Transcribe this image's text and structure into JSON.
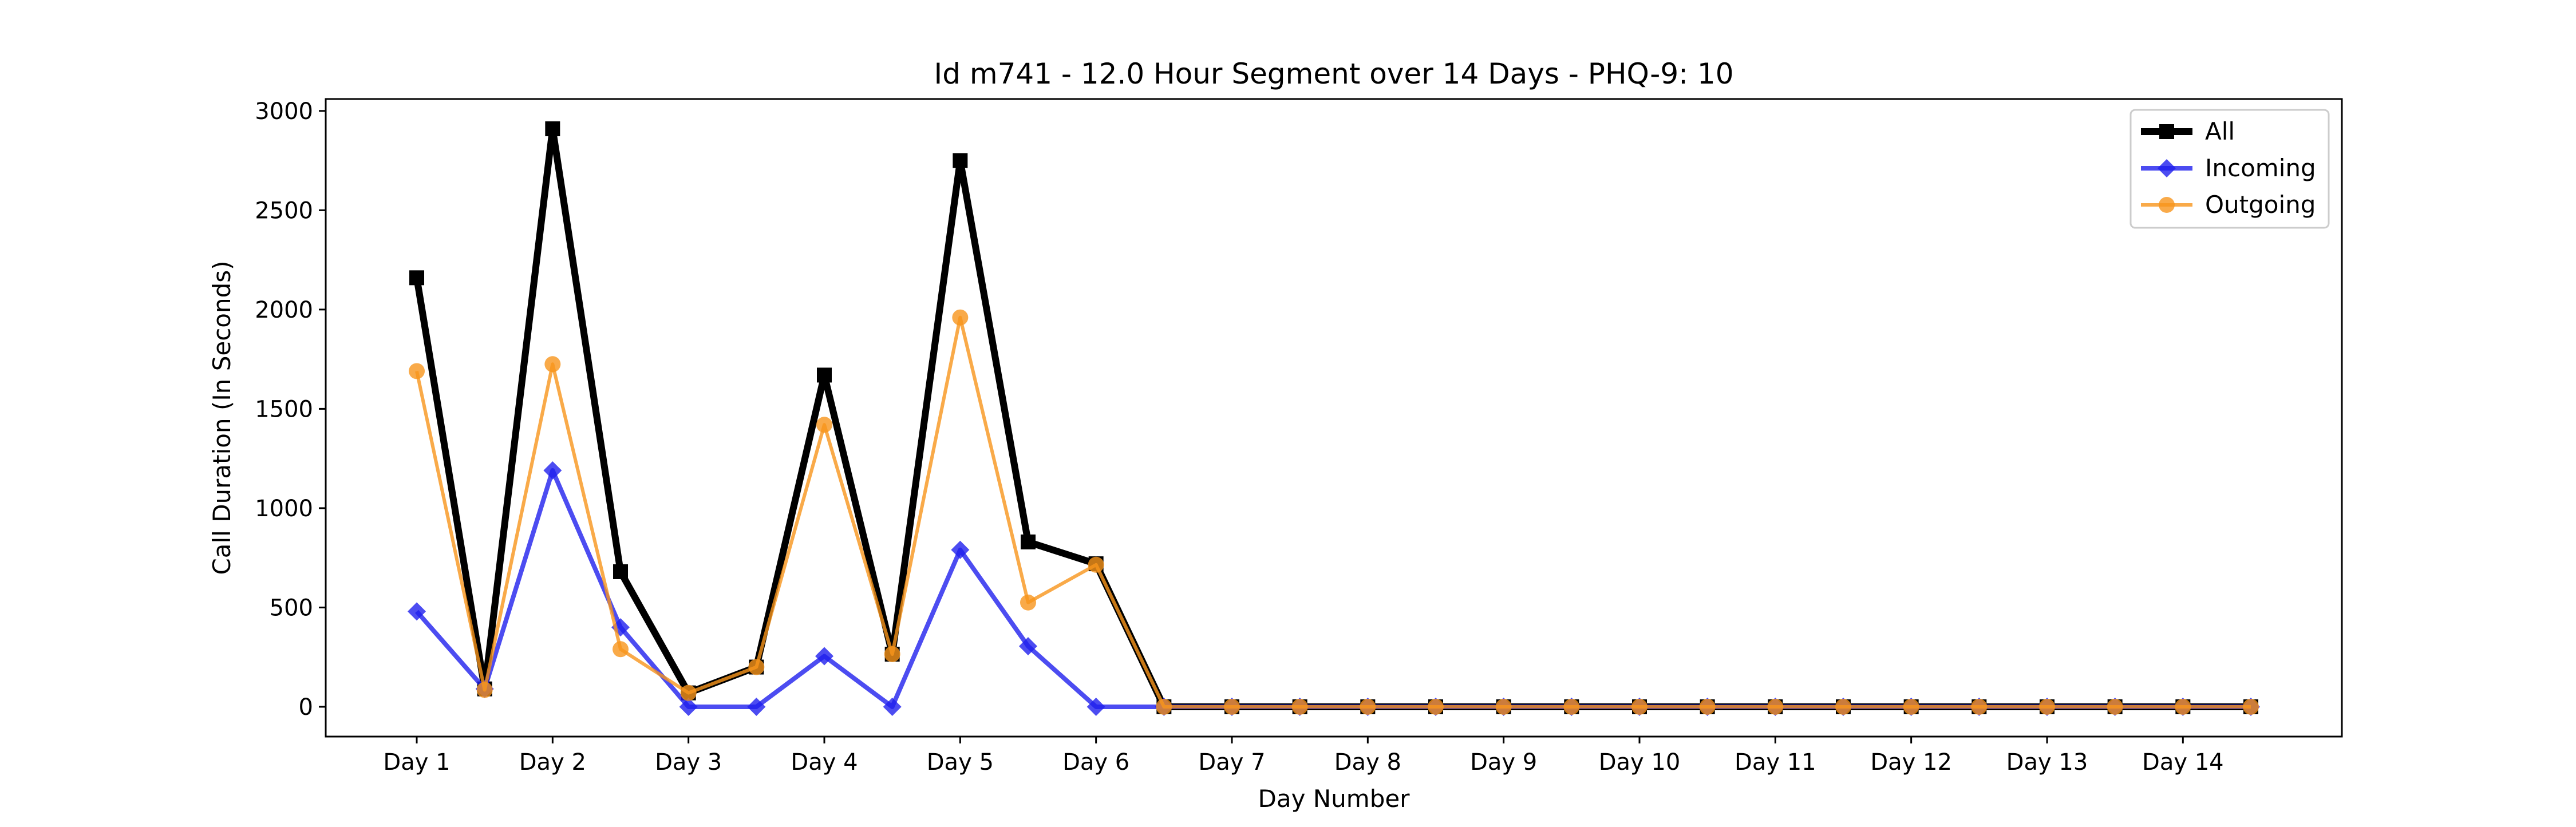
{
  "chart_data": {
    "type": "line",
    "title": "Id m741 - 12.0 Hour Segment over 14 Days - PHQ-9: 10",
    "xlabel": "Day Number",
    "ylabel": "Call Duration (In Seconds)",
    "ylim": [
      -150,
      3060
    ],
    "yticks": [
      0,
      500,
      1000,
      1500,
      2000,
      2500,
      3000
    ],
    "xticks": [
      "Day 1",
      "Day 2",
      "Day 3",
      "Day 4",
      "Day 5",
      "Day 6",
      "Day 7",
      "Day 8",
      "Day 9",
      "Day 10",
      "Day 11",
      "Day 12",
      "Day 13",
      "Day 14"
    ],
    "x": [
      1,
      1.5,
      2,
      2.5,
      3,
      3.5,
      4,
      4.5,
      5,
      5.5,
      6,
      6.5,
      7,
      7.5,
      8,
      8.5,
      9,
      9.5,
      10,
      10.5,
      11,
      11.5,
      12,
      12.5,
      13,
      13.5,
      14,
      14.5
    ],
    "grid": false,
    "legend_position": "top-right",
    "series": [
      {
        "name": "All",
        "color": "#000000",
        "marker": "square",
        "values": [
          2160,
          90,
          2910,
          680,
          70,
          200,
          1670,
          265,
          2750,
          830,
          720,
          0,
          0,
          0,
          0,
          0,
          0,
          0,
          0,
          0,
          0,
          0,
          0,
          0,
          0,
          0,
          0,
          0
        ]
      },
      {
        "name": "Incoming",
        "color": "#1f1fee",
        "marker": "diamond",
        "values": [
          480,
          90,
          1190,
          400,
          0,
          0,
          255,
          0,
          790,
          305,
          0,
          0,
          0,
          0,
          0,
          0,
          0,
          0,
          0,
          0,
          0,
          0,
          0,
          0,
          0,
          0,
          0,
          0
        ]
      },
      {
        "name": "Outgoing",
        "color": "#f7951c",
        "marker": "circle",
        "values": [
          1690,
          85,
          1725,
          290,
          70,
          200,
          1420,
          265,
          1960,
          525,
          715,
          0,
          0,
          0,
          0,
          0,
          0,
          0,
          0,
          0,
          0,
          0,
          0,
          0,
          0,
          0,
          0,
          0
        ]
      }
    ]
  }
}
